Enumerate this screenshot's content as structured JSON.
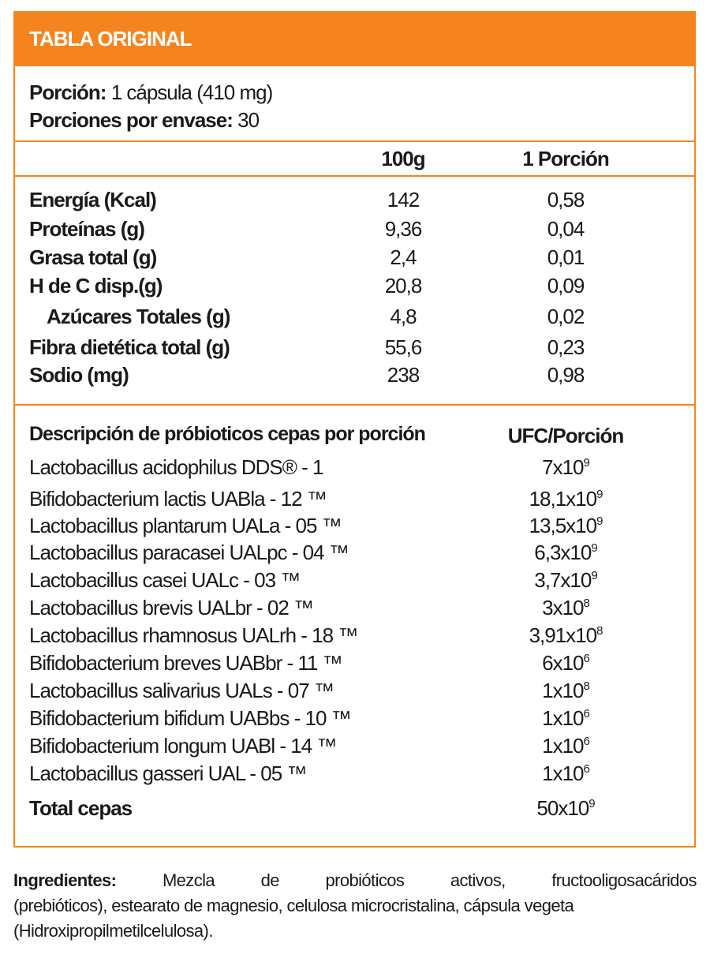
{
  "title": "TABLA ORIGINAL",
  "porcion": {
    "label": "Porción:",
    "value": "1 cápsula (410 mg)"
  },
  "porciones_envase": {
    "label": "Porciones por envase:",
    "value": "30"
  },
  "columns": {
    "per100": "100g",
    "perServing": "1 Porción"
  },
  "nutrients": [
    {
      "name": "Energía (Kcal)",
      "per100": "142",
      "perServing": "0,58"
    },
    {
      "name": "Proteínas (g)",
      "per100": "9,36",
      "perServing": "0,04"
    },
    {
      "name": "Grasa total (g)",
      "per100": "2,4",
      "perServing": "0,01"
    },
    {
      "name": "H de C disp.(g)",
      "per100": "20,8",
      "perServing": "0,09"
    },
    {
      "name": "Azúcares Totales (g)",
      "per100": "4,8",
      "perServing": "0,02",
      "indent": true
    },
    {
      "name": "Fibra dietética total (g)",
      "per100": "55,6",
      "perServing": "0,23"
    },
    {
      "name": "Sodio (mg)",
      "per100": "238",
      "perServing": "0,98"
    }
  ],
  "probiotics": {
    "header": "Descripción de próbioticos cepas por porción",
    "ufc_header": "UFC/Porción",
    "strains": [
      {
        "name": "Lactobacillus acidophilus DDS® - 1",
        "base": "7x10",
        "exp": "9"
      },
      {
        "name": "Bifidobacterium lactis UABla - 12 ™",
        "base": "18,1x10",
        "exp": "9"
      },
      {
        "name": "Lactobacillus plantarum UALa - 05 ™",
        "base": "13,5x10",
        "exp": "9"
      },
      {
        "name": "Lactobacillus paracasei UALpc - 04 ™",
        "base": "6,3x10",
        "exp": "9"
      },
      {
        "name": "Lactobacillus casei UALc - 03 ™",
        "base": "3,7x10",
        "exp": "9"
      },
      {
        "name": "Lactobacillus brevis UALbr - 02 ™",
        "base": "3x10",
        "exp": "8"
      },
      {
        "name": "Lactobacillus rhamnosus UALrh - 18 ™",
        "base": "3,91x10",
        "exp": "8"
      },
      {
        "name": "Bifidobacterium breves UABbr - 11 ™",
        "base": "6x10",
        "exp": "6"
      },
      {
        "name": "Lactobacillus salivarius UALs - 07 ™",
        "base": "1x10",
        "exp": "8"
      },
      {
        "name": "Bifidobacterium bifidum UABbs - 10 ™",
        "base": "1x10",
        "exp": "6"
      },
      {
        "name": "Bifidobacterium longum UABl - 14 ™",
        "base": "1x10",
        "exp": "6"
      },
      {
        "name": "Lactobacillus gasseri UAL - 05 ™",
        "base": "1x10",
        "exp": "6"
      }
    ],
    "total": {
      "label": "Total cepas",
      "base": "50x10",
      "exp": "9"
    }
  },
  "ingredients": {
    "label": "Ingredientes:",
    "line1_words": [
      "Mezcla",
      "de",
      "probióticos",
      "activos,",
      "fructooligosacáridos"
    ],
    "line2": "(prebióticos), estearato de magnesio, celulosa microcristalina, cápsula vegeta",
    "line3": "(Hidroxipropilmetilcelulosa)."
  },
  "colors": {
    "accent": "#f5841f"
  }
}
